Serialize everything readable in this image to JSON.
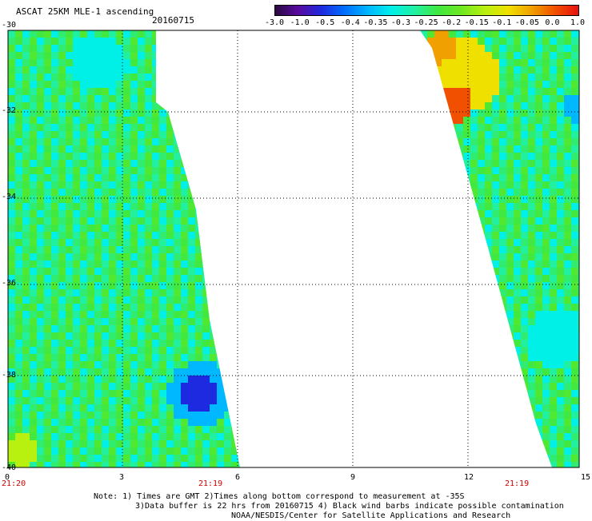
{
  "header": {
    "title": "ASCAT 25KM MLE-1 ascending",
    "date": "20160715"
  },
  "colorbar": {
    "labels": [
      "-3.0",
      "-1.0",
      "-0.5",
      "-0.4",
      "-0.35",
      "-0.3",
      "-0.25",
      "-0.2",
      "-0.15",
      "-0.1",
      "-0.05",
      "0.0",
      "1.0"
    ],
    "colors": [
      "#2a0a40",
      "#5a0aa0",
      "#1e2ae0",
      "#0070ff",
      "#00b8ff",
      "#00f0e8",
      "#20f0a0",
      "#40e840",
      "#70e820",
      "#b8f010",
      "#f0e000",
      "#f0a000",
      "#f05000",
      "#e81010"
    ]
  },
  "y_axis": {
    "ticks": [
      "-30",
      "-32",
      "-34",
      "-36",
      "-38",
      "-40"
    ]
  },
  "x_axis": {
    "ticks": [
      "0",
      "3",
      "6",
      "9",
      "12",
      "15"
    ]
  },
  "times": [
    "21:20",
    "21:19",
    "21:19"
  ],
  "notes": {
    "line1": "Note: 1) Times are GMT 2)Times along bottom correspond to measurement at -35S",
    "line2": "3)Data buffer is 22 hrs from 20160715 4) Black wind barbs indicate possible contamination",
    "line3": "NOAA/NESDIS/Center for Satellite Applications and Research"
  }
}
